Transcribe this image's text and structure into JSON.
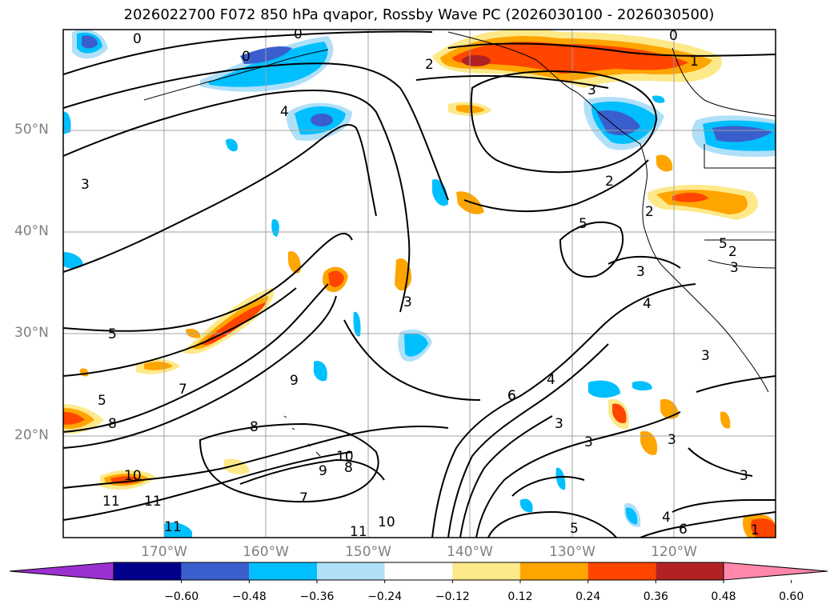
{
  "title": "2026022700 F072 850 hPa qvapor, Rossby Wave PC (2026030100 - 2026030500)",
  "lat_labels": [
    "50°N",
    "40°N",
    "30°N",
    "20°N"
  ],
  "lon_labels": [
    "170°W",
    "160°W",
    "150°W",
    "140°W",
    "130°W",
    "120°W"
  ],
  "colorbar": {
    "tick_labels": [
      "-0.60",
      "-0.48",
      "-0.36",
      "-0.24",
      "-0.12",
      "0.12",
      "0.24",
      "0.36",
      "0.48",
      "0.60"
    ],
    "colors": [
      "#9b30d0",
      "#00008b",
      "#3a5fcd",
      "#00bfff",
      "#b0e0f8",
      "#ffffff",
      "#fde98a",
      "#ffa500",
      "#ff4500",
      "#b22222",
      "#ff88aa"
    ]
  },
  "contour_labels": [
    "0",
    "0",
    "0",
    "0",
    "1",
    "2",
    "2",
    "3",
    "3",
    "4",
    "5",
    "2",
    "5",
    "3",
    "4",
    "3",
    "3",
    "5",
    "9",
    "7",
    "5",
    "8",
    "8",
    "6",
    "10",
    "11",
    "11",
    "11",
    "10",
    "9",
    "8",
    "7",
    "11",
    "10",
    "6",
    "4",
    "3",
    "3",
    "3",
    "3",
    "5",
    "6",
    "4",
    "2",
    "1",
    "3"
  ],
  "colors": {
    "frame": "#000000",
    "grid": "#a0a0a0",
    "axis_label": "#808080",
    "land": "#000000"
  }
}
